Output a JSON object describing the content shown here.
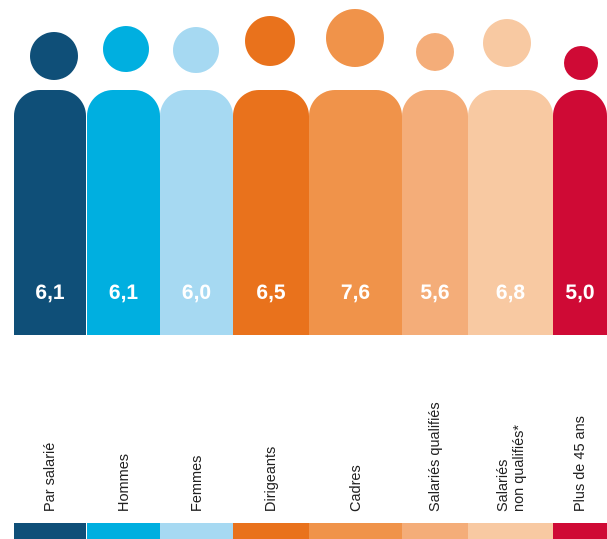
{
  "chart_data": {
    "type": "bar",
    "categories": [
      "Par salarié",
      "Hommes",
      "Femmes",
      "Dirigeants",
      "Cadres",
      "Salariés qualifiés",
      "Salariés\nnon qualifiés*",
      "Plus de 45 ans"
    ],
    "values": [
      "6,1",
      "6,1",
      "6,0",
      "6,5",
      "7,6",
      "5,6",
      "6,8",
      "5,0"
    ],
    "colors": [
      "#0f4f78",
      "#00afe0",
      "#a6d9f2",
      "#e9721c",
      "#f0934a",
      "#f4ad79",
      "#f8c9a2",
      "#cf0a35"
    ],
    "title": "",
    "xlabel": "",
    "ylabel": ""
  }
}
